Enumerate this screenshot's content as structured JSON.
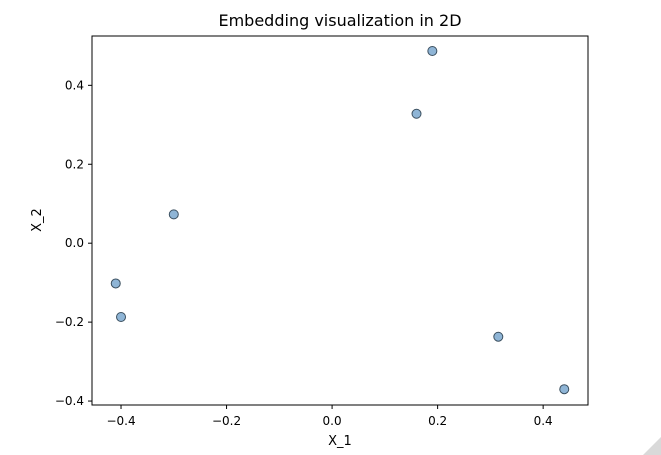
{
  "chart_data": {
    "type": "scatter",
    "title": "Embedding visualization in 2D",
    "xlabel": "X_1",
    "ylabel": "X_2",
    "xlim": [
      -0.455,
      0.485
    ],
    "ylim": [
      -0.41,
      0.525
    ],
    "xticks": [
      -0.4,
      -0.2,
      0.0,
      0.2,
      0.4
    ],
    "xtick_labels": [
      "−0.4",
      "−0.2",
      "0.0",
      "0.2",
      "0.4"
    ],
    "yticks": [
      -0.4,
      -0.2,
      0.0,
      0.2,
      0.4
    ],
    "ytick_labels": [
      "−0.4",
      "−0.2",
      "0.0",
      "0.2",
      "0.4"
    ],
    "grid": false,
    "marker_color": "#8fb5d6",
    "marker_edge_color": "#3b4f5f",
    "points": [
      {
        "x": 0.19,
        "y": 0.487
      },
      {
        "x": 0.16,
        "y": 0.328
      },
      {
        "x": -0.3,
        "y": 0.073
      },
      {
        "x": -0.41,
        "y": -0.102
      },
      {
        "x": -0.4,
        "y": -0.187
      },
      {
        "x": 0.315,
        "y": -0.237
      },
      {
        "x": 0.44,
        "y": -0.37
      }
    ]
  }
}
